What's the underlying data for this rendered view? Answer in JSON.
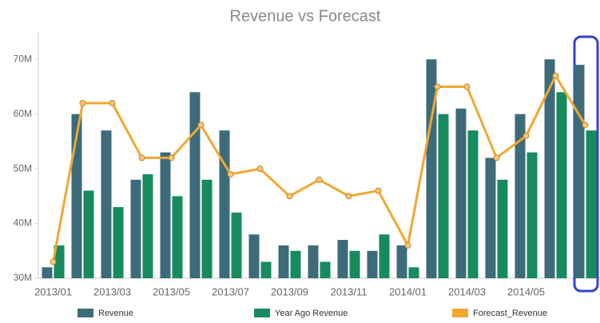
{
  "chart_data": {
    "type": "bar-line",
    "title": "Revenue vs Forecast",
    "categories": [
      "2013/01",
      null,
      "2013/03",
      null,
      "2013/05",
      null,
      "2013/07",
      null,
      "2013/09",
      null,
      "2013/11",
      null,
      "2014/01",
      null,
      "2014/03",
      null,
      "2014/05",
      null,
      null
    ],
    "series": [
      {
        "name": "Revenue",
        "type": "bar",
        "color": "#3d6b7a",
        "values": [
          32,
          60,
          57,
          48,
          53,
          64,
          57,
          38,
          36,
          36,
          37,
          35,
          36,
          70,
          61,
          52,
          60,
          70,
          69
        ]
      },
      {
        "name": "Year Ago Revenue",
        "type": "bar",
        "color": "#178a5e",
        "values": [
          36,
          46,
          43,
          49,
          45,
          48,
          42,
          33,
          35,
          33,
          35,
          38,
          32,
          60,
          57,
          48,
          53,
          64,
          57
        ]
      },
      {
        "name": "Forecast_Revenue",
        "type": "line",
        "color": "#f0a830",
        "values": [
          33,
          62,
          62,
          52,
          52,
          58,
          49,
          50,
          45,
          48,
          45,
          46,
          36,
          65,
          65,
          52,
          56,
          67,
          58
        ]
      }
    ],
    "ylim": [
      30,
      75
    ],
    "yticks": [
      {
        "value": 30,
        "label": "30M"
      },
      {
        "value": 40,
        "label": "40M"
      },
      {
        "value": 50,
        "label": "50M"
      },
      {
        "value": 60,
        "label": "60M"
      },
      {
        "value": 70,
        "label": "70M"
      }
    ],
    "grid": false,
    "legend": "bottom"
  }
}
